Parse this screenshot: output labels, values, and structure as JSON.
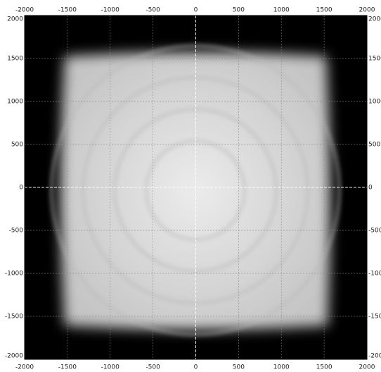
{
  "chart_data": {
    "type": "image",
    "xlim": [
      -2000,
      2000
    ],
    "ylim": [
      -2000,
      2000
    ],
    "xticks": [
      -2000,
      -1500,
      -1000,
      -500,
      0,
      500,
      1000,
      1500,
      2000
    ],
    "yticks": [
      -2000,
      -1500,
      -1000,
      -500,
      0,
      500,
      1000,
      1500,
      2000
    ],
    "grid": true
  }
}
